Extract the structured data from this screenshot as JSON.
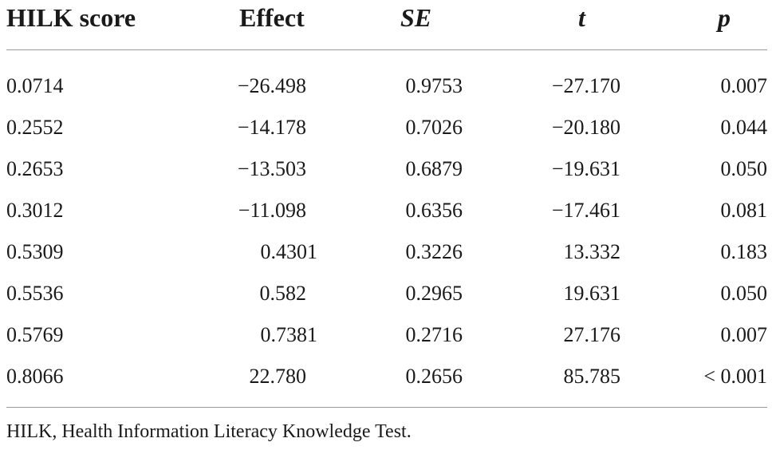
{
  "table": {
    "headers": {
      "score": "HILK score",
      "effect": "Effect",
      "se": "SE",
      "t": "t",
      "p": "p"
    },
    "rows": [
      {
        "score": "0.0714",
        "effect": "−26.498",
        "se": "0.9753",
        "t": "−27.170",
        "p": "0.007"
      },
      {
        "score": "0.2552",
        "effect": "−14.178",
        "se": "0.7026",
        "t": "−20.180",
        "p": "0.044"
      },
      {
        "score": "0.2653",
        "effect": "−13.503",
        "se": "0.6879",
        "t": "−19.631",
        "p": "0.050"
      },
      {
        "score": "0.3012",
        "effect": "−11.098",
        "se": "0.6356",
        "t": "−17.461",
        "p": "0.081"
      },
      {
        "score": "0.5309",
        "effect": "0.4301",
        "se": "0.3226",
        "t": "13.332",
        "p": "0.183"
      },
      {
        "score": "0.5536",
        "effect": "0.582",
        "se": "0.2965",
        "t": "19.631",
        "p": "0.050"
      },
      {
        "score": "0.5769",
        "effect": "0.7381",
        "se": "0.2716",
        "t": "27.176",
        "p": "0.007"
      },
      {
        "score": "0.8066",
        "effect": "22.780",
        "se": "0.2656",
        "t": "85.785",
        "p": "< 0.001"
      }
    ]
  },
  "footnote": "HILK, Health Information Literacy Knowledge Test."
}
